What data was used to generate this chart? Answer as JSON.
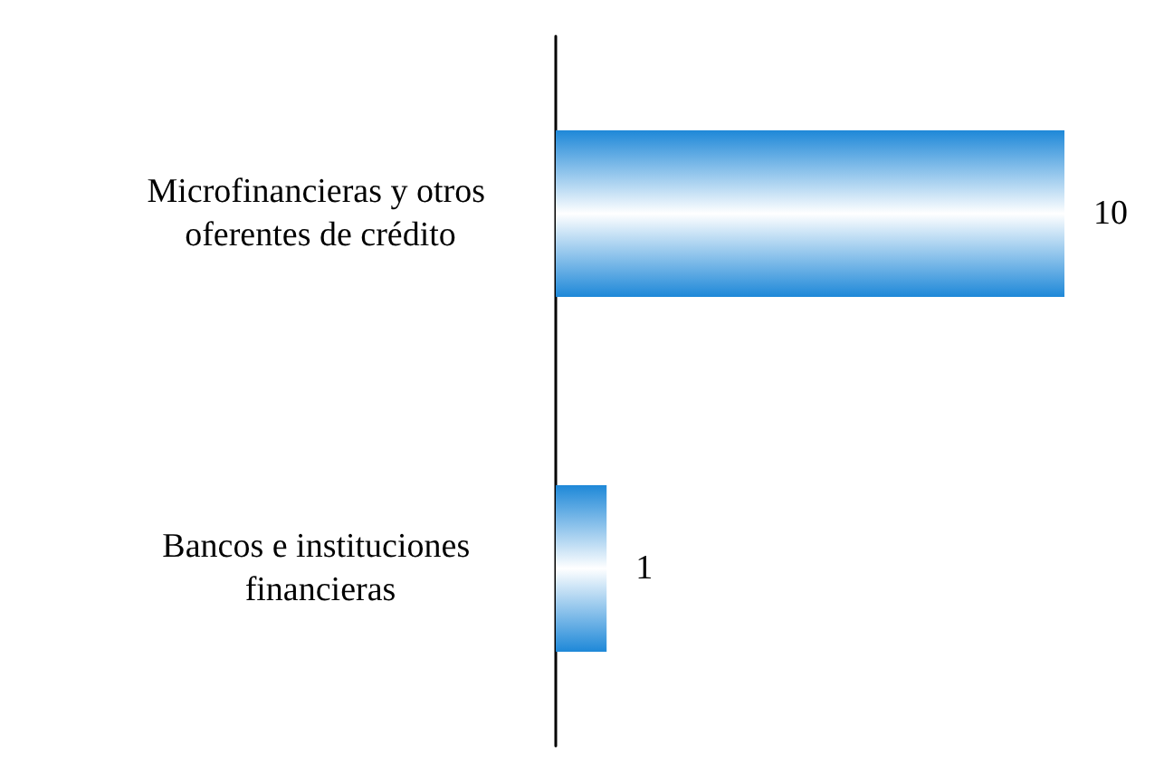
{
  "chart_data": {
    "type": "bar",
    "orientation": "horizontal",
    "categories": [
      "Microfinancieras y otros oferentes de crédito",
      "Bancos e instituciones financieras"
    ],
    "values": [
      10,
      1
    ],
    "color": "#1e88d8",
    "data_labels": true
  }
}
